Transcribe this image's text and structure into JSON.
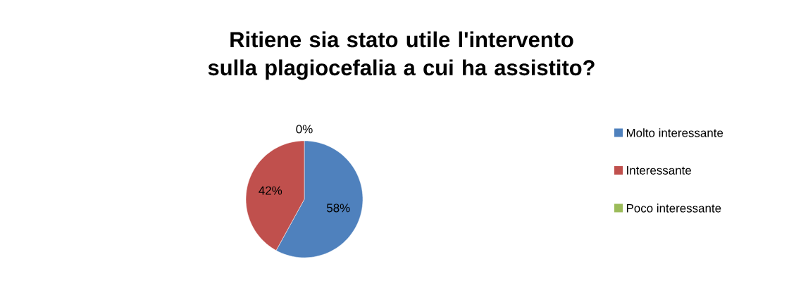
{
  "chart_data": {
    "type": "pie",
    "title": "Ritiene sia stato utile l'intervento sulla plagiocefalia a cui ha assistito?",
    "categories": [
      "Molto interessante",
      "Interessante",
      "Poco interessante"
    ],
    "values": [
      58,
      42,
      0
    ],
    "colors": [
      "#4f81bd",
      "#c0504d",
      "#9bbb59"
    ],
    "value_labels": [
      "58%",
      "42%",
      "0%"
    ],
    "legend": "right"
  }
}
